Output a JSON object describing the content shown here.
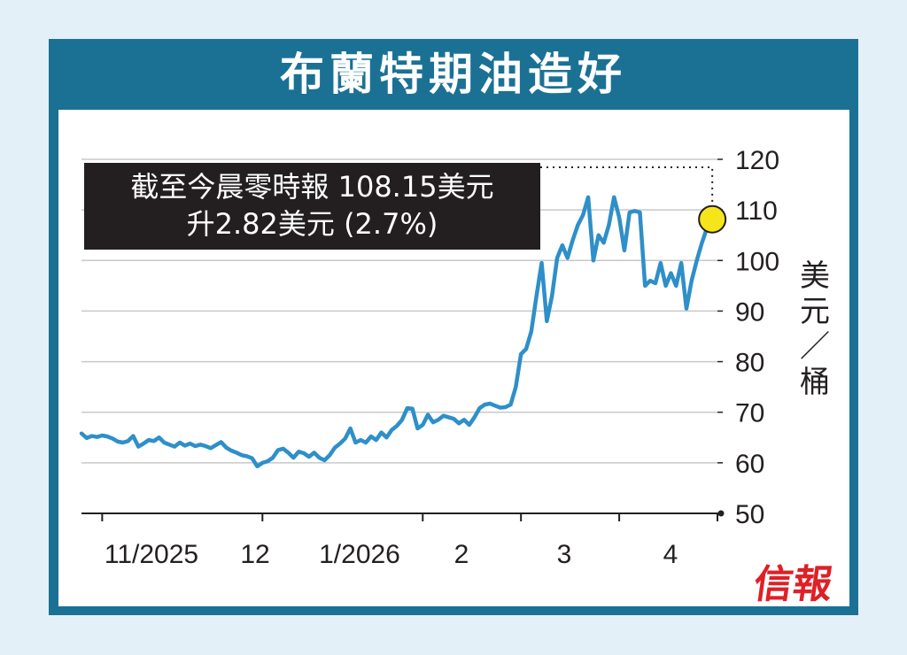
{
  "title": "布蘭特期油造好",
  "callout": {
    "line1": "截至今晨零時報 108.15美元",
    "line2": "升2.82美元 (2.7%)"
  },
  "unit_label": [
    "美",
    "元",
    "／",
    "桶"
  ],
  "logo": "信報",
  "colors": {
    "frame": "#1b7194",
    "line": "#2e8fc9",
    "highlight": "#f7e51b",
    "logo": "#e01f26"
  },
  "chart_data": {
    "type": "line",
    "title": "布蘭特期油造好",
    "ylabel": "美元／桶",
    "ylim": [
      50,
      120
    ],
    "yticks": [
      50,
      60,
      70,
      80,
      90,
      100,
      110,
      120
    ],
    "ytick_labels": [
      "50",
      "60",
      "70",
      "80",
      "90",
      "100",
      "110",
      "120"
    ],
    "xlim": [
      0,
      123
    ],
    "xtick_positions": [
      4,
      35,
      66,
      85,
      104,
      123
    ],
    "xtick_labels": [
      "11/2025",
      "12",
      "1/2026",
      "2",
      "3",
      "4"
    ],
    "grid": true,
    "series": [
      {
        "values": [
          65.8,
          64.9,
          65.3,
          65.1,
          65.4,
          65.2,
          64.8,
          64.2,
          64.0,
          64.3,
          65.3,
          63.2,
          63.8,
          64.5,
          64.3,
          65.0,
          64.0,
          63.6,
          63.2,
          64.0,
          63.4,
          63.8,
          63.3,
          63.6,
          63.3,
          62.9,
          63.5,
          64.1,
          63.0,
          62.4,
          62.0,
          61.5,
          61.3,
          60.9,
          59.3,
          60.0,
          60.3,
          61.0,
          62.5,
          62.8,
          62.0,
          61.0,
          62.2,
          61.9,
          61.2,
          62.0,
          61.0,
          60.5,
          61.5,
          63.0,
          63.8,
          64.8,
          66.8,
          64.0,
          64.5,
          64.0,
          65.2,
          64.5,
          66.0,
          65.0,
          66.5,
          67.3,
          68.5,
          70.8,
          70.7,
          66.8,
          67.5,
          69.5,
          68.0,
          68.5,
          69.3,
          69.0,
          68.7,
          67.8,
          68.5,
          67.5,
          69.0,
          70.8,
          71.5,
          71.7,
          71.3,
          70.9,
          71.0,
          71.5,
          75.0,
          81.5,
          82.5,
          86.0,
          93.0,
          99.5,
          88.0,
          93.0,
          100.5,
          103.0,
          100.5,
          104.0,
          107.0,
          109.0,
          112.5,
          100.0,
          105.0,
          103.5,
          107.0,
          112.5,
          108.5,
          102.0,
          109.5,
          109.8,
          109.5,
          95.0,
          96.0,
          95.5,
          99.5,
          95.0,
          97.5,
          95.0,
          99.5,
          90.5,
          96.0,
          100.0,
          103.5,
          106.5,
          108.15
        ],
        "color": "#2e8fc9"
      }
    ],
    "highlight_point": {
      "x": 122,
      "y": 108.15
    }
  }
}
